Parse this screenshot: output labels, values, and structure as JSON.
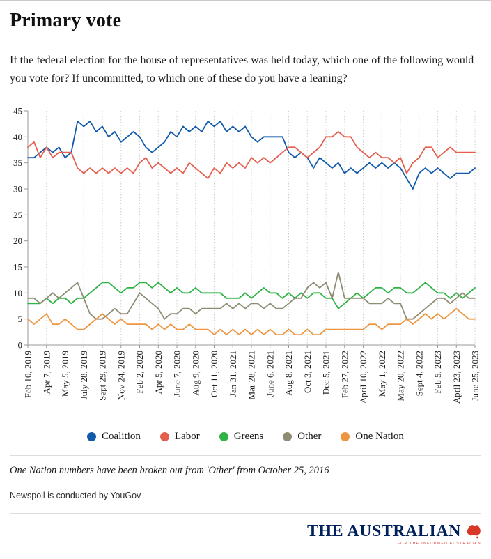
{
  "page": {
    "title": "Primary vote",
    "subtitle": "If the federal election for the house of representatives was held today, which one of the following would you vote for? If uncommitted, to which one of these do you have a leaning?",
    "footnote": "One Nation numbers have been broken out from 'Other' from October 25, 2016",
    "source_note": "Newspoll is conducted by YouGov",
    "masthead": "THE AUSTRALIAN",
    "masthead_tagline": "FOR THE INFORMED AUSTRALIAN"
  },
  "colors": {
    "grid": "#cccccc",
    "axis": "#999999",
    "masthead_navy": "#00205b",
    "masthead_red": "#d93829"
  },
  "chart_data": {
    "type": "line",
    "title": "Primary vote",
    "xlabel": "",
    "ylabel": "",
    "ylim": [
      0,
      45
    ],
    "ytick_step": 5,
    "grid": "vertical-dotted",
    "legend_position": "bottom",
    "tick_every": 3,
    "x_tick_labels": [
      "Feb 10, 2019",
      "Apr 7, 2019",
      "May 5, 2019",
      "July 28, 2019",
      "Sept 29, 2019",
      "Nov 24, 2019",
      "Feb 2, 2020",
      "Apr 5, 2020",
      "June 7, 2020",
      "Aug 9, 2020",
      "Oct 11, 2020",
      "Jan 31, 2021",
      "Mar 28, 2021",
      "June 6, 2021",
      "Aug 8, 2021",
      "Oct 3, 2021",
      "Dec 5, 2021",
      "Feb 27, 2022",
      "April 10, 2022",
      "May 1, 2022",
      "May 20, 2022",
      "Sept 4, 2022",
      "Feb 5, 2023",
      "April 23, 2023",
      "June 25, 2023"
    ],
    "series": [
      {
        "name": "Coalition",
        "color": "#1159ab",
        "values": [
          36,
          36,
          37,
          38,
          37,
          38,
          36,
          37,
          43,
          42,
          43,
          41,
          42,
          40,
          41,
          39,
          40,
          41,
          40,
          38,
          37,
          38,
          39,
          41,
          40,
          42,
          41,
          42,
          41,
          43,
          42,
          43,
          41,
          42,
          41,
          42,
          40,
          39,
          40,
          40,
          40,
          40,
          37,
          36,
          37,
          36,
          34,
          36,
          35,
          34,
          35,
          33,
          34,
          33,
          34,
          35,
          34,
          35,
          34,
          35,
          34,
          32,
          30,
          33,
          34,
          33,
          34,
          33,
          32,
          33,
          33,
          33,
          34
        ]
      },
      {
        "name": "Labor",
        "color": "#e55e4e",
        "values": [
          38,
          39,
          36,
          38,
          36,
          37,
          37,
          37,
          34,
          33,
          34,
          33,
          34,
          33,
          34,
          33,
          34,
          33,
          35,
          36,
          34,
          35,
          34,
          33,
          34,
          33,
          35,
          34,
          33,
          32,
          34,
          33,
          35,
          34,
          35,
          34,
          36,
          35,
          36,
          35,
          36,
          37,
          38,
          38,
          37,
          36,
          37,
          38,
          40,
          40,
          41,
          40,
          40,
          38,
          37,
          36,
          37,
          36,
          36,
          35,
          36,
          33,
          35,
          36,
          38,
          38,
          36,
          37,
          38,
          37,
          37,
          37,
          37
        ]
      },
      {
        "name": "Greens",
        "color": "#2fb344",
        "values": [
          8,
          8,
          8,
          9,
          8,
          9,
          9,
          8,
          9,
          9,
          10,
          11,
          12,
          12,
          11,
          10,
          11,
          11,
          12,
          12,
          11,
          12,
          11,
          10,
          11,
          10,
          10,
          11,
          10,
          10,
          10,
          10,
          9,
          9,
          9,
          10,
          9,
          10,
          11,
          10,
          10,
          9,
          10,
          9,
          10,
          9,
          10,
          10,
          9,
          9,
          7,
          8,
          9,
          10,
          9,
          10,
          11,
          11,
          10,
          11,
          11,
          10,
          10,
          11,
          12,
          11,
          10,
          10,
          9,
          10,
          9,
          10,
          11
        ]
      },
      {
        "name": "Other",
        "color": "#8f8c74",
        "values": [
          9,
          9,
          8,
          9,
          10,
          9,
          10,
          11,
          12,
          9,
          6,
          5,
          5,
          6,
          7,
          6,
          6,
          8,
          10,
          9,
          8,
          7,
          5,
          6,
          6,
          7,
          7,
          6,
          7,
          7,
          7,
          7,
          8,
          7,
          8,
          7,
          8,
          8,
          7,
          8,
          7,
          7,
          8,
          9,
          9,
          11,
          12,
          11,
          12,
          9,
          14,
          9,
          9,
          9,
          9,
          8,
          8,
          8,
          9,
          8,
          8,
          5,
          5,
          6,
          7,
          8,
          9,
          9,
          8,
          9,
          10,
          9,
          9
        ]
      },
      {
        "name": "One Nation",
        "color": "#ee9540",
        "values": [
          5,
          4,
          5,
          6,
          4,
          4,
          5,
          4,
          3,
          3,
          4,
          5,
          6,
          5,
          4,
          5,
          4,
          4,
          4,
          4,
          3,
          4,
          3,
          4,
          3,
          3,
          4,
          3,
          3,
          3,
          2,
          3,
          2,
          3,
          2,
          3,
          2,
          3,
          2,
          3,
          2,
          2,
          3,
          2,
          2,
          3,
          2,
          2,
          3,
          3,
          3,
          3,
          3,
          3,
          3,
          4,
          4,
          3,
          4,
          4,
          4,
          5,
          4,
          5,
          6,
          5,
          6,
          5,
          6,
          7,
          6,
          5,
          5
        ]
      }
    ]
  }
}
